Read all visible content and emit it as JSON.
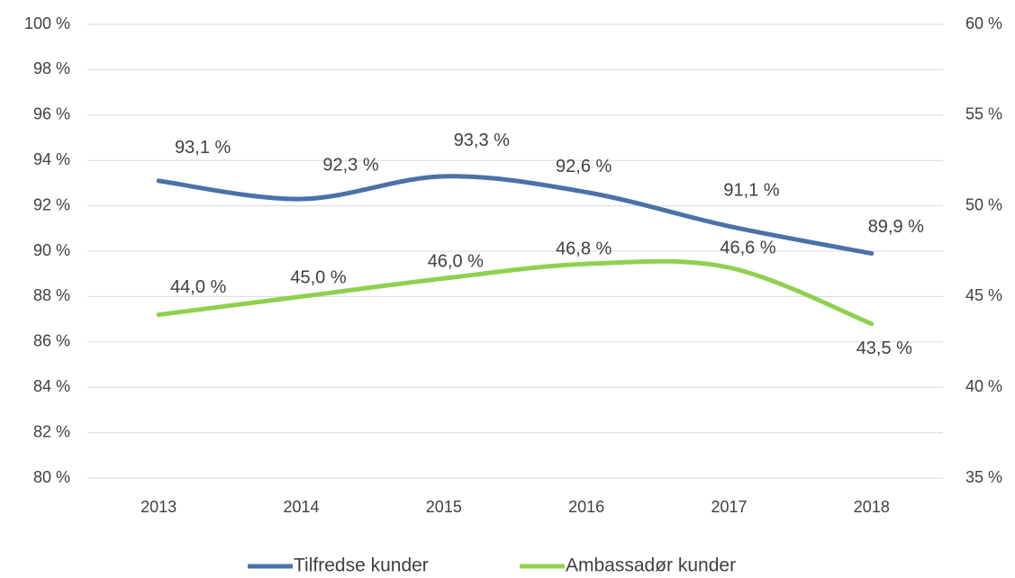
{
  "chart_data": {
    "type": "line",
    "categories": [
      "2013",
      "2014",
      "2015",
      "2016",
      "2017",
      "2018"
    ],
    "series": [
      {
        "name": "Tilfredse kunder",
        "color": "#4a72a8",
        "values": [
          93.1,
          92.3,
          93.3,
          92.6,
          91.1,
          89.9
        ],
        "value_labels": [
          "93,1 %",
          "92,3 %",
          "93,3 %",
          "92,6 %",
          "91,1 %",
          "89,9 %"
        ]
      },
      {
        "name": "Ambassadør kunder",
        "color": "#8fd14f",
        "axis": "y2",
        "values": [
          44.0,
          45.0,
          46.0,
          46.8,
          46.6,
          43.5
        ],
        "value_labels": [
          "44,0 %",
          "45,0 %",
          "46,0 %",
          "46,8 %",
          "46,6 %",
          "43,5 %"
        ]
      }
    ],
    "ylim": [
      80,
      100
    ],
    "yticks": [
      {
        "value": 80,
        "label": "80 %"
      },
      {
        "value": 82,
        "label": "82 %"
      },
      {
        "value": 84,
        "label": "84 %"
      },
      {
        "value": 86,
        "label": "86 %"
      },
      {
        "value": 88,
        "label": "88 %"
      },
      {
        "value": 90,
        "label": "90 %"
      },
      {
        "value": 92,
        "label": "92 %"
      },
      {
        "value": 94,
        "label": "94 %"
      },
      {
        "value": 96,
        "label": "96 %"
      },
      {
        "value": 98,
        "label": "98 %"
      },
      {
        "value": 100,
        "label": "100 %"
      }
    ],
    "y2lim": [
      35,
      60
    ],
    "y2ticks": [
      {
        "value": 35,
        "label": "35 %"
      },
      {
        "value": 40,
        "label": "40 %"
      },
      {
        "value": 45,
        "label": "45 %"
      },
      {
        "value": 50,
        "label": "50 %"
      },
      {
        "value": 55,
        "label": "55 %"
      },
      {
        "value": 60,
        "label": "60 %"
      }
    ],
    "grid": true,
    "legend": "bottom",
    "smooth": true
  }
}
